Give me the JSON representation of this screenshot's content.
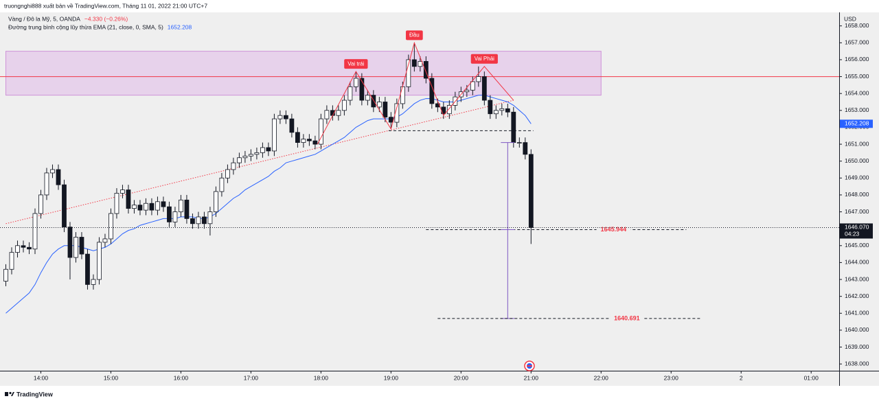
{
  "chart_data": {
    "type": "candlestick",
    "publisher_note": "truongnghi888 xuất bản về TradingView.com, Tháng 11 01, 2022 21:00 UTC+7",
    "title": "Vàng / Đô la Mỹ, 5, OANDA",
    "change": "−4.330 (−0.26%)",
    "axis_unit": "USD",
    "brand": "TradingView",
    "up_color": "#ffffff",
    "down_color": "#131722",
    "xlim": [
      805,
      1524
    ],
    "ylim": [
      1637.6,
      1658.8
    ],
    "xticks": [
      {
        "value": 840,
        "label": "14:00"
      },
      {
        "value": 900,
        "label": "15:00"
      },
      {
        "value": 960,
        "label": "16:00"
      },
      {
        "value": 1020,
        "label": "17:00"
      },
      {
        "value": 1080,
        "label": "18:00"
      },
      {
        "value": 1140,
        "label": "19:00"
      },
      {
        "value": 1200,
        "label": "20:00"
      },
      {
        "value": 1260,
        "label": "21:00"
      },
      {
        "value": 1320,
        "label": "22:00"
      },
      {
        "value": 1380,
        "label": "23:00"
      },
      {
        "value": 1440,
        "label": "2"
      },
      {
        "value": 1500,
        "label": "01:00"
      }
    ],
    "yticks": [
      {
        "value": 1638,
        "label": "1638.000"
      },
      {
        "value": 1639,
        "label": "1639.000"
      },
      {
        "value": 1640,
        "label": "1640.000"
      },
      {
        "value": 1641,
        "label": "1641.000"
      },
      {
        "value": 1642,
        "label": "1642.000"
      },
      {
        "value": 1643,
        "label": "1643.000"
      },
      {
        "value": 1644,
        "label": "1644.000"
      },
      {
        "value": 1645,
        "label": "1645.000"
      },
      {
        "value": 1646,
        "label": "1646.000"
      },
      {
        "value": 1647,
        "label": "1647.000"
      },
      {
        "value": 1648,
        "label": "1648.000"
      },
      {
        "value": 1649,
        "label": "1649.000"
      },
      {
        "value": 1650,
        "label": "1650.000"
      },
      {
        "value": 1651,
        "label": "1651.000"
      },
      {
        "value": 1652,
        "label": "1652.000"
      },
      {
        "value": 1653,
        "label": "1653.000"
      },
      {
        "value": 1654,
        "label": "1654.000"
      },
      {
        "value": 1655,
        "label": "1655.000"
      },
      {
        "value": 1656,
        "label": "1656.000"
      },
      {
        "value": 1657,
        "label": "1657.000"
      },
      {
        "value": 1658,
        "label": "1658.000"
      }
    ],
    "x": [
      810,
      815,
      820,
      825,
      830,
      835,
      840,
      845,
      850,
      855,
      860,
      865,
      870,
      875,
      880,
      885,
      890,
      895,
      900,
      905,
      910,
      915,
      920,
      925,
      930,
      935,
      940,
      945,
      950,
      955,
      960,
      965,
      970,
      975,
      980,
      985,
      990,
      995,
      1000,
      1005,
      1010,
      1015,
      1020,
      1025,
      1030,
      1035,
      1040,
      1045,
      1050,
      1055,
      1060,
      1065,
      1070,
      1075,
      1080,
      1085,
      1090,
      1095,
      1100,
      1105,
      1110,
      1115,
      1120,
      1125,
      1130,
      1135,
      1140,
      1145,
      1150,
      1155,
      1160,
      1165,
      1170,
      1175,
      1180,
      1185,
      1190,
      1195,
      1200,
      1205,
      1210,
      1215,
      1220,
      1225,
      1230,
      1235,
      1240,
      1245,
      1250,
      1255,
      1260
    ],
    "open": [
      1642.9,
      1643.6,
      1644.6,
      1645.0,
      1644.9,
      1644.8,
      1646.9,
      1648.0,
      1649.3,
      1649.5,
      1648.6,
      1646.1,
      1644.3,
      1645.5,
      1644.5,
      1642.7,
      1643.0,
      1645.2,
      1645.4,
      1646.9,
      1648.1,
      1648.3,
      1647.2,
      1647.4,
      1647.1,
      1647.5,
      1647.1,
      1647.6,
      1647.3,
      1646.4,
      1647.0,
      1647.7,
      1646.6,
      1646.3,
      1646.7,
      1646.3,
      1647.0,
      1648.2,
      1649.0,
      1649.5,
      1649.9,
      1650.2,
      1650.3,
      1650.4,
      1650.5,
      1650.8,
      1650.6,
      1652.5,
      1652.7,
      1652.5,
      1651.7,
      1651.1,
      1651.3,
      1651.2,
      1651.0,
      1652.5,
      1653.0,
      1652.7,
      1653.0,
      1653.6,
      1654.4,
      1654.9,
      1653.6,
      1653.9,
      1653.2,
      1653.5,
      1652.6,
      1652.3,
      1653.4,
      1654.4,
      1656.0,
      1655.6,
      1655.9,
      1654.9,
      1653.4,
      1653.2,
      1652.8,
      1653.3,
      1653.8,
      1654.1,
      1654.2,
      1654.7,
      1655.0,
      1653.6,
      1652.8,
      1653.0,
      1653.1,
      1652.9,
      1651.1,
      1651.1,
      1650.4
    ],
    "high": [
      1643.9,
      1644.9,
      1645.3,
      1645.3,
      1645.2,
      1647.2,
      1648.3,
      1649.6,
      1649.8,
      1649.8,
      1648.9,
      1646.4,
      1645.8,
      1645.8,
      1644.8,
      1643.3,
      1645.5,
      1645.7,
      1647.2,
      1648.4,
      1648.6,
      1648.6,
      1647.7,
      1647.7,
      1647.8,
      1647.8,
      1647.9,
      1647.9,
      1647.6,
      1647.3,
      1648.0,
      1648.0,
      1646.9,
      1647.0,
      1647.0,
      1647.3,
      1648.5,
      1649.3,
      1649.8,
      1650.2,
      1650.5,
      1650.6,
      1650.7,
      1650.8,
      1651.1,
      1651.1,
      1652.8,
      1653.0,
      1653.0,
      1652.8,
      1652.0,
      1651.6,
      1651.6,
      1651.5,
      1652.8,
      1653.3,
      1653.3,
      1653.3,
      1653.9,
      1654.7,
      1655.3,
      1655.2,
      1654.2,
      1654.2,
      1653.8,
      1653.8,
      1652.9,
      1653.7,
      1654.7,
      1656.3,
      1657.0,
      1656.2,
      1656.2,
      1655.2,
      1653.7,
      1653.5,
      1653.6,
      1654.1,
      1654.4,
      1654.5,
      1655.0,
      1655.6,
      1655.3,
      1653.9,
      1653.3,
      1653.4,
      1653.4,
      1653.2,
      1651.4,
      1651.4,
      1650.7
    ],
    "low": [
      1642.6,
      1643.3,
      1644.3,
      1644.6,
      1644.5,
      1644.5,
      1646.6,
      1647.7,
      1649.0,
      1648.3,
      1645.8,
      1643.0,
      1644.0,
      1644.2,
      1642.4,
      1642.4,
      1642.7,
      1644.9,
      1645.1,
      1646.6,
      1647.8,
      1646.9,
      1646.9,
      1646.8,
      1646.8,
      1646.8,
      1646.8,
      1647.0,
      1646.1,
      1646.1,
      1646.7,
      1646.3,
      1646.0,
      1646.0,
      1646.0,
      1645.6,
      1646.7,
      1647.9,
      1648.7,
      1649.2,
      1649.6,
      1649.9,
      1650.0,
      1650.1,
      1650.2,
      1650.3,
      1650.3,
      1652.2,
      1652.2,
      1651.4,
      1650.8,
      1650.8,
      1650.9,
      1650.7,
      1650.7,
      1652.2,
      1652.4,
      1652.4,
      1652.7,
      1653.3,
      1654.1,
      1653.3,
      1653.3,
      1652.9,
      1652.9,
      1652.3,
      1651.9,
      1652.0,
      1653.1,
      1654.1,
      1655.3,
      1655.3,
      1654.6,
      1653.1,
      1652.9,
      1652.5,
      1652.5,
      1653.0,
      1653.5,
      1653.8,
      1653.9,
      1654.4,
      1653.3,
      1652.5,
      1652.5,
      1652.7,
      1652.6,
      1650.8,
      1650.8,
      1650.1,
      1645.1
    ],
    "close": [
      1643.6,
      1644.6,
      1645.0,
      1644.9,
      1644.8,
      1646.9,
      1648.0,
      1649.3,
      1649.5,
      1648.6,
      1646.1,
      1644.3,
      1645.5,
      1644.5,
      1642.7,
      1643.0,
      1645.2,
      1645.4,
      1646.9,
      1648.1,
      1648.3,
      1647.2,
      1647.4,
      1647.1,
      1647.5,
      1647.1,
      1647.6,
      1647.3,
      1646.4,
      1647.0,
      1647.7,
      1646.6,
      1646.3,
      1646.7,
      1646.3,
      1647.0,
      1648.2,
      1649.0,
      1649.5,
      1649.9,
      1650.2,
      1650.3,
      1650.4,
      1650.5,
      1650.8,
      1650.6,
      1652.5,
      1652.7,
      1652.5,
      1651.7,
      1651.1,
      1651.3,
      1651.2,
      1651.0,
      1652.5,
      1653.0,
      1652.7,
      1653.0,
      1653.6,
      1654.4,
      1654.9,
      1653.6,
      1653.9,
      1653.2,
      1653.5,
      1652.6,
      1652.3,
      1653.4,
      1654.4,
      1656.0,
      1655.6,
      1655.9,
      1654.9,
      1653.4,
      1653.2,
      1652.8,
      1653.3,
      1653.8,
      1654.1,
      1654.2,
      1654.7,
      1655.0,
      1653.6,
      1652.8,
      1653.0,
      1653.1,
      1652.9,
      1651.1,
      1651.1,
      1650.4,
      1646.07
    ],
    "ema": {
      "name": "Đường trung bình cộng lũy thừa EMA (21, close, 0, SMA, 5)",
      "color": "#2962ff",
      "values": [
        1641.0,
        1641.3,
        1641.6,
        1641.9,
        1642.2,
        1642.7,
        1643.4,
        1644.0,
        1644.5,
        1644.8,
        1645.0,
        1645.0,
        1645.0,
        1644.9,
        1644.8,
        1644.7,
        1644.8,
        1644.9,
        1645.1,
        1645.4,
        1645.7,
        1645.9,
        1646.0,
        1646.2,
        1646.3,
        1646.4,
        1646.5,
        1646.6,
        1646.6,
        1646.6,
        1646.7,
        1646.7,
        1646.7,
        1646.6,
        1646.6,
        1646.7,
        1646.9,
        1647.2,
        1647.5,
        1647.8,
        1648.0,
        1648.3,
        1648.5,
        1648.7,
        1648.9,
        1649.1,
        1649.4,
        1649.6,
        1649.9,
        1650.0,
        1650.1,
        1650.2,
        1650.3,
        1650.4,
        1650.6,
        1650.8,
        1651.0,
        1651.2,
        1651.4,
        1651.7,
        1652.0,
        1652.2,
        1652.4,
        1652.5,
        1652.5,
        1652.5,
        1652.5,
        1652.6,
        1652.8,
        1653.1,
        1653.4,
        1653.6,
        1653.7,
        1653.7,
        1653.6,
        1653.5,
        1653.5,
        1653.5,
        1653.6,
        1653.7,
        1653.8,
        1653.9,
        1653.9,
        1653.8,
        1653.7,
        1653.6,
        1653.5,
        1653.3,
        1653.0,
        1652.7,
        1652.208
      ]
    },
    "zone": {
      "x": [
        810,
        1320
      ],
      "y": [
        1653.9,
        1656.5
      ],
      "color": "#e1bee7",
      "border": "#ce93d8"
    },
    "resistance": {
      "value": 1655.0,
      "color": "#f23645"
    },
    "trendline": {
      "x": [
        810,
        1245
      ],
      "y": [
        1646.3,
        1653.6
      ],
      "color": "#f23645"
    },
    "pattern": {
      "color": "#f23645",
      "x": [
        1077,
        1110,
        1140,
        1160,
        1185,
        1220,
        1245
      ],
      "y": [
        1651.0,
        1655.3,
        1651.9,
        1657.0,
        1652.7,
        1655.6,
        1653.6
      ],
      "labels": [
        {
          "text": "Vai trái",
          "x": 1110,
          "y": 1655.3
        },
        {
          "text": "Đầu",
          "x": 1160,
          "y": 1657.0
        },
        {
          "text": "Vai Phải",
          "x": 1220,
          "y": 1655.6
        }
      ]
    },
    "neckline": {
      "value": 1651.8,
      "x": [
        1138,
        1262
      ]
    },
    "targets": [
      {
        "value": 1645.944,
        "x": [
          1170,
          1393
        ],
        "color": "#f23645"
      },
      {
        "value": 1640.691,
        "x": [
          1180,
          1405
        ],
        "color": "#f23645"
      }
    ],
    "measure": {
      "x": 1240,
      "from": 1651.1,
      "to": 1640.691,
      "color": "#7e57c2"
    },
    "price_tags": [
      {
        "value": 1652.208,
        "color": "#2962ff"
      },
      {
        "value": 1646.07,
        "label": "1646.070",
        "countdown": "04:23",
        "color": "#131722"
      }
    ]
  }
}
